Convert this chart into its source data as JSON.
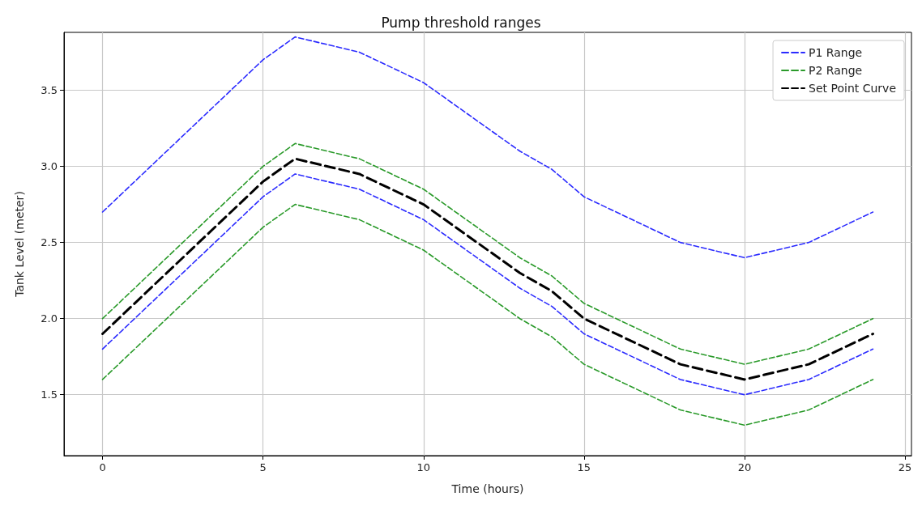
{
  "chart_data": {
    "type": "line",
    "title": "Pump threshold ranges",
    "xlabel": "Time (hours)",
    "ylabel": "Tank Level (meter)",
    "x": [
      0,
      5,
      6,
      8,
      10,
      13,
      14,
      15,
      18,
      20,
      22,
      24
    ],
    "series": [
      {
        "name": "P1 Range",
        "color": "#2b2bff",
        "line_style": "dashed",
        "values": [
          2.7,
          3.7,
          3.85,
          3.75,
          3.55,
          3.1,
          2.98,
          2.8,
          2.5,
          2.4,
          2.5,
          2.7
        ]
      },
      {
        "color": "#2b2bff",
        "line_style": "dashed",
        "values": [
          1.8,
          2.8,
          2.95,
          2.85,
          2.65,
          2.2,
          2.08,
          1.9,
          1.6,
          1.5,
          1.6,
          1.8
        ]
      },
      {
        "name": "P2 Range",
        "color": "#2a9a2a",
        "line_style": "dashed",
        "values": [
          2.0,
          3.0,
          3.15,
          3.05,
          2.85,
          2.4,
          2.28,
          2.1,
          1.8,
          1.7,
          1.8,
          2.0
        ]
      },
      {
        "color": "#2a9a2a",
        "line_style": "dashed",
        "values": [
          1.6,
          2.6,
          2.75,
          2.65,
          2.45,
          2.0,
          1.88,
          1.7,
          1.4,
          1.3,
          1.4,
          1.6
        ]
      },
      {
        "name": "Set Point Curve",
        "color": "#000000",
        "line_style": "dashed",
        "values": [
          1.9,
          2.9,
          3.05,
          2.95,
          2.75,
          2.3,
          2.18,
          2.0,
          1.7,
          1.6,
          1.7,
          1.9
        ]
      }
    ],
    "xlim": [
      -1.2,
      25.2
    ],
    "xticks": [
      0,
      5,
      10,
      15,
      20,
      25
    ],
    "ylim": [
      1.1,
      3.88
    ],
    "yticks": [
      {
        "value": 1.5,
        "label": "1.5"
      },
      {
        "value": 2,
        "label": "2.0"
      },
      {
        "value": 2.5,
        "label": "2.5"
      },
      {
        "value": 3,
        "label": "3.0"
      },
      {
        "value": 3.5,
        "label": "3.5"
      }
    ],
    "grid": true,
    "legend": "top right",
    "marker": "none"
  }
}
